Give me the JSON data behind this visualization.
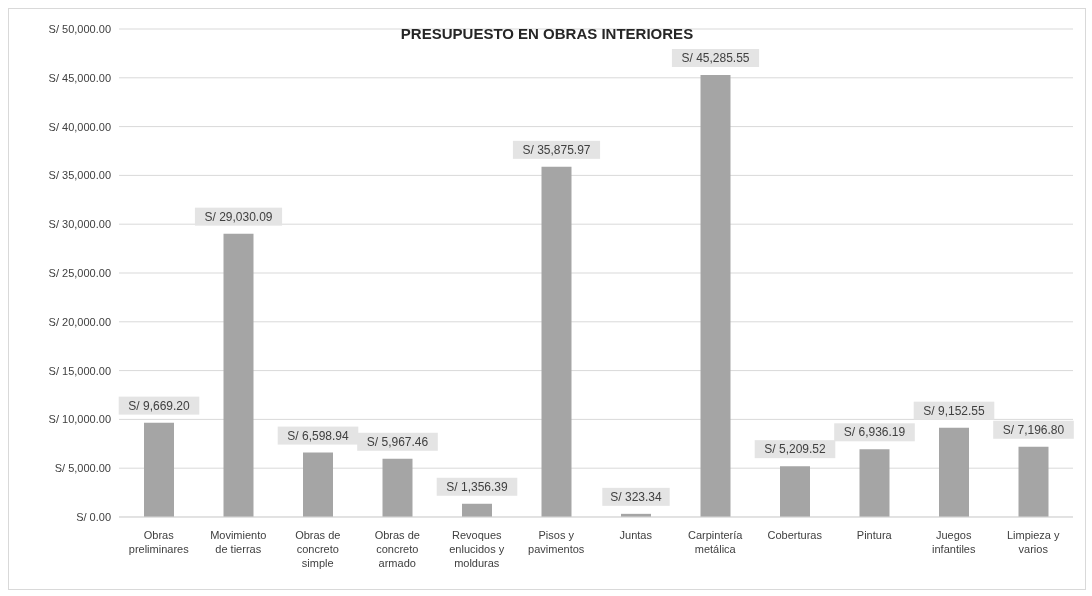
{
  "chart_data": {
    "type": "bar",
    "title": "PRESUPUESTO EN OBRAS INTERIORES",
    "categories": [
      "Obras preliminares",
      "Movimiento de tierras",
      "Obras de concreto simple",
      "Obras de concreto armado",
      "Revoques enlucidos y molduras",
      "Pisos y pavimentos",
      "Juntas",
      "Carpintería metálica",
      "Coberturas",
      "Pintura",
      "Juegos infantiles",
      "Limpieza y varios"
    ],
    "values": [
      9669.2,
      29030.09,
      6598.94,
      5967.46,
      1356.39,
      35875.97,
      323.34,
      45285.55,
      5209.52,
      6936.19,
      9152.55,
      7196.8
    ],
    "value_labels": [
      "S/ 9,669.20",
      "S/ 29,030.09",
      "S/ 6,598.94",
      "S/ 5,967.46",
      "S/ 1,356.39",
      "S/ 35,875.97",
      "S/ 323.34",
      "S/ 45,285.55",
      "S/ 5,209.52",
      "S/ 6,936.19",
      "S/ 9,152.55",
      "S/ 7,196.80"
    ],
    "color": "#a5a5a5",
    "ylim": [
      0,
      50000
    ],
    "yticks": [
      {
        "value": 0,
        "label": "S/ 0.00"
      },
      {
        "value": 5000,
        "label": "S/ 5,000.00"
      },
      {
        "value": 10000,
        "label": "S/ 10,000.00"
      },
      {
        "value": 15000,
        "label": "S/ 15,000.00"
      },
      {
        "value": 20000,
        "label": "S/ 20,000.00"
      },
      {
        "value": 25000,
        "label": "S/ 25,000.00"
      },
      {
        "value": 30000,
        "label": "S/ 30,000.00"
      },
      {
        "value": 35000,
        "label": "S/ 35,000.00"
      },
      {
        "value": 40000,
        "label": "S/ 40,000.00"
      },
      {
        "value": 45000,
        "label": "S/ 45,000.00"
      },
      {
        "value": 50000,
        "label": "S/ 50,000.00"
      }
    ],
    "grid": "y",
    "legend": false
  }
}
